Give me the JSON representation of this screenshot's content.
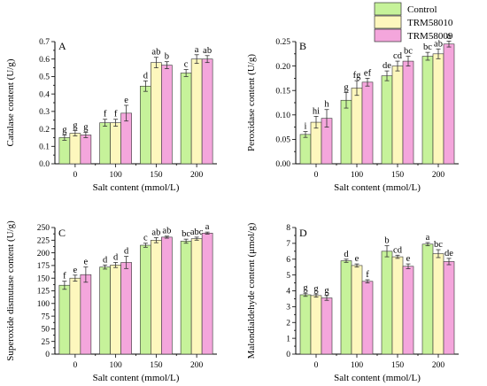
{
  "legend": {
    "items": [
      {
        "label": "Control",
        "color": "#c6f29a"
      },
      {
        "label": "TRM58010",
        "color": "#fdf7bd"
      },
      {
        "label": "TRM58009",
        "color": "#f4a6dc"
      }
    ]
  },
  "chart_data": [
    {
      "type": "bar",
      "panel": "A",
      "xlabel": "Salt content (mmol/L)",
      "ylabel": "Catalase content (U/g)",
      "categories": [
        "0",
        "100",
        "150",
        "200"
      ],
      "ylim": [
        0,
        0.7
      ],
      "yticks": [
        "0.0",
        "0.1",
        "0.2",
        "0.3",
        "0.4",
        "0.5",
        "0.6",
        "0.7"
      ],
      "series": [
        {
          "name": "Control",
          "values": [
            0.15,
            0.235,
            0.445,
            0.52
          ],
          "errors": [
            0.015,
            0.02,
            0.03,
            0.02
          ],
          "labels": [
            "g",
            "f",
            "d",
            "c"
          ]
        },
        {
          "name": "TRM58010",
          "values": [
            0.175,
            0.235,
            0.58,
            0.6
          ],
          "errors": [
            0.015,
            0.02,
            0.03,
            0.025
          ],
          "labels": [
            "g",
            "f",
            "ab",
            "a"
          ]
        },
        {
          "name": "TRM58009",
          "values": [
            0.165,
            0.29,
            0.565,
            0.6
          ],
          "errors": [
            0.015,
            0.045,
            0.02,
            0.02
          ],
          "labels": [
            "g",
            "e",
            "b",
            "ab"
          ]
        }
      ]
    },
    {
      "type": "bar",
      "panel": "B",
      "xlabel": "Salt content (mmol/L)",
      "ylabel": "Peroxidase content (U/g)",
      "categories": [
        "0",
        "100",
        "150",
        "200"
      ],
      "ylim": [
        0,
        0.25
      ],
      "yticks": [
        "0.00",
        "0.05",
        "0.10",
        "0.15",
        "0.20",
        "0.25"
      ],
      "series": [
        {
          "name": "Control",
          "values": [
            0.06,
            0.13,
            0.18,
            0.22
          ],
          "errors": [
            0.006,
            0.016,
            0.01,
            0.008
          ],
          "labels": [
            "i",
            "g",
            "de",
            "bc"
          ]
        },
        {
          "name": "TRM58010",
          "values": [
            0.085,
            0.155,
            0.2,
            0.225
          ],
          "errors": [
            0.012,
            0.015,
            0.01,
            0.01
          ],
          "labels": [
            "hi",
            "fg",
            "cd",
            "ab"
          ]
        },
        {
          "name": "TRM58009",
          "values": [
            0.093,
            0.167,
            0.21,
            0.245
          ],
          "errors": [
            0.018,
            0.008,
            0.01,
            0.006
          ],
          "labels": [
            "h",
            "ef",
            "bc",
            "a"
          ]
        }
      ]
    },
    {
      "type": "bar",
      "panel": "C",
      "xlabel": "Salt content (mmol/L)",
      "ylabel": "Superoxide dismutase content (U/g)",
      "categories": [
        "0",
        "100",
        "150",
        "200"
      ],
      "ylim": [
        0,
        250
      ],
      "yticks": [
        "0",
        "25",
        "50",
        "75",
        "100",
        "125",
        "150",
        "175",
        "200",
        "225",
        "250"
      ],
      "series": [
        {
          "name": "Control",
          "values": [
            136,
            172,
            215,
            223
          ],
          "errors": [
            8,
            4,
            4,
            4
          ],
          "labels": [
            "f",
            "d",
            "c",
            "bc"
          ]
        },
        {
          "name": "TRM58010",
          "values": [
            150,
            176,
            225,
            228
          ],
          "errors": [
            6,
            5,
            5,
            3
          ],
          "labels": [
            "e",
            "d",
            "ab",
            "abc"
          ]
        },
        {
          "name": "TRM58009",
          "values": [
            157,
            181,
            231,
            239
          ],
          "errors": [
            15,
            12,
            2,
            2
          ],
          "labels": [
            "e",
            "d",
            "ab",
            "a"
          ]
        }
      ]
    },
    {
      "type": "bar",
      "panel": "D",
      "xlabel": "Salt content (mmol/L)",
      "ylabel": "Malondialdehyde content (μmol/g)",
      "categories": [
        "0",
        "100",
        "150",
        "200"
      ],
      "ylim": [
        0,
        8
      ],
      "yticks": [
        "0",
        "1",
        "2",
        "3",
        "4",
        "5",
        "6",
        "7",
        "8"
      ],
      "series": [
        {
          "name": "Control",
          "values": [
            3.75,
            5.9,
            6.5,
            6.95
          ],
          "errors": [
            0.1,
            0.1,
            0.35,
            0.1
          ],
          "labels": [
            "g",
            "d",
            "b",
            "a"
          ]
        },
        {
          "name": "TRM58010",
          "values": [
            3.7,
            5.6,
            6.15,
            6.35
          ],
          "errors": [
            0.1,
            0.1,
            0.1,
            0.25
          ],
          "labels": [
            "g",
            "e",
            "cd",
            "bc"
          ]
        },
        {
          "name": "TRM58009",
          "values": [
            3.55,
            4.6,
            5.55,
            5.85
          ],
          "errors": [
            0.15,
            0.1,
            0.15,
            0.2
          ],
          "labels": [
            "g",
            "f",
            "e",
            "de"
          ]
        }
      ]
    }
  ]
}
